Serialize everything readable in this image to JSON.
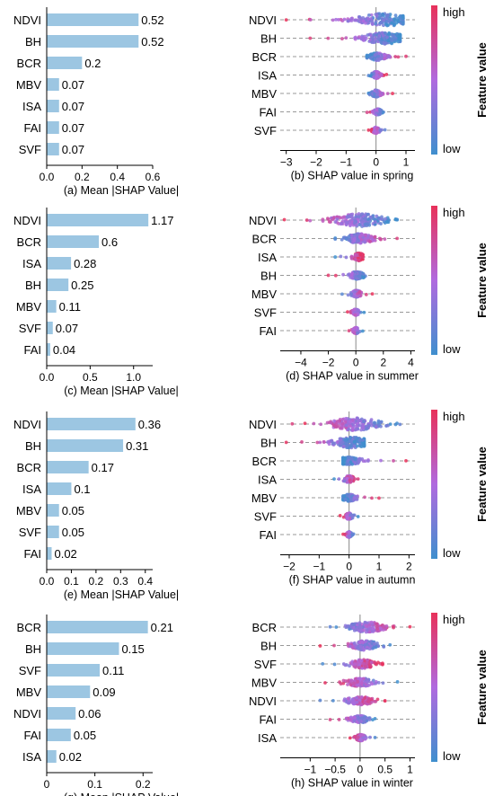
{
  "colors": {
    "bar": "#9cc6e2",
    "high": "#e8315a",
    "low": "#3f8fce",
    "mid": "#b06adf",
    "axis": "#000000",
    "grid": "#999999"
  },
  "colorbar": {
    "high_label": "high",
    "low_label": "low",
    "title": "Feature value"
  },
  "chart_data": [
    {
      "type": "bar",
      "orientation": "horizontal",
      "caption": "(a) Mean |SHAP Value|",
      "categories": [
        "NDVI",
        "BH",
        "BCR",
        "MBV",
        "ISA",
        "FAI",
        "SVF"
      ],
      "values": [
        0.52,
        0.52,
        0.2,
        0.07,
        0.07,
        0.07,
        0.07
      ],
      "value_labels": [
        "0.52",
        "0.52",
        "0.2",
        "0.07",
        "0.07",
        "0.07",
        "0.07"
      ],
      "xlim": [
        0,
        0.6
      ],
      "xticks": [
        0,
        0.2,
        0.4,
        0.6
      ],
      "xtick_labels": [
        "0.0",
        "0.2",
        "0.4",
        "0.6"
      ]
    },
    {
      "type": "scatter",
      "subtype": "shap-beeswarm",
      "caption": "(b) SHAP value in spring",
      "categories": [
        "NDVI",
        "BH",
        "BCR",
        "ISA",
        "MBV",
        "FAI",
        "SVF"
      ],
      "xlim": [
        -3.2,
        1.3
      ],
      "xticks": [
        -3,
        -2,
        -1,
        0,
        1
      ],
      "xtick_labels": [
        "−3",
        "−2",
        "−1",
        "0",
        "1"
      ],
      "features": [
        {
          "min": -3.0,
          "max": 0.9,
          "center": 0.3,
          "spread": 1.3,
          "high_side": "left",
          "thickness": 1.0
        },
        {
          "min": -2.2,
          "max": 0.8,
          "center": 0.3,
          "spread": 0.9,
          "high_side": "left",
          "thickness": 0.9
        },
        {
          "min": -0.3,
          "max": 1.0,
          "center": 0.05,
          "spread": 0.45,
          "high_side": "right",
          "thickness": 0.55
        },
        {
          "min": -0.25,
          "max": 0.35,
          "center": 0.0,
          "spread": 0.15,
          "high_side": "right",
          "thickness": 0.5
        },
        {
          "min": -0.25,
          "max": 0.55,
          "center": 0.0,
          "spread": 0.2,
          "high_side": "right",
          "thickness": 0.5
        },
        {
          "min": -0.3,
          "max": 0.25,
          "center": 0.05,
          "spread": 0.12,
          "high_side": "left",
          "thickness": 0.45
        },
        {
          "min": -0.25,
          "max": 0.3,
          "center": 0.0,
          "spread": 0.12,
          "high_side": "left",
          "thickness": 0.45
        }
      ]
    },
    {
      "type": "bar",
      "orientation": "horizontal",
      "caption": "(c) Mean |SHAP Value|",
      "categories": [
        "NDVI",
        "BCR",
        "ISA",
        "BH",
        "MBV",
        "SVF",
        "FAI"
      ],
      "values": [
        1.17,
        0.6,
        0.28,
        0.25,
        0.11,
        0.07,
        0.04
      ],
      "value_labels": [
        "1.17",
        "0.6",
        "0.28",
        "0.25",
        "0.11",
        "0.07",
        "0.04"
      ],
      "xlim": [
        0,
        1.22
      ],
      "xticks": [
        0,
        0.5,
        1.0
      ],
      "xtick_labels": [
        "0.0",
        "0.5",
        "1.0"
      ]
    },
    {
      "type": "scatter",
      "subtype": "shap-beeswarm",
      "caption": "(d) SHAP value in summer",
      "categories": [
        "NDVI",
        "BCR",
        "ISA",
        "BH",
        "MBV",
        "SVF",
        "FAI"
      ],
      "xlim": [
        -5.5,
        4.3
      ],
      "xticks": [
        -4,
        -2,
        0,
        2,
        4
      ],
      "xtick_labels": [
        "−4",
        "−2",
        "0",
        "2",
        "4"
      ],
      "features": [
        {
          "min": -5.2,
          "max": 3.0,
          "center": 0.3,
          "spread": 2.2,
          "high_side": "left",
          "thickness": 1.0
        },
        {
          "min": -1.5,
          "max": 3.0,
          "center": 0.3,
          "spread": 1.0,
          "high_side": "right",
          "thickness": 0.75
        },
        {
          "min": -1.5,
          "max": 0.5,
          "center": 0.2,
          "spread": 0.35,
          "high_side": "right",
          "thickness": 0.55
        },
        {
          "min": -2.0,
          "max": 0.7,
          "center": 0.1,
          "spread": 0.4,
          "high_side": "left",
          "thickness": 0.55
        },
        {
          "min": -1.0,
          "max": 1.2,
          "center": 0.0,
          "spread": 0.25,
          "high_side": "right",
          "thickness": 0.5
        },
        {
          "min": -0.6,
          "max": 0.6,
          "center": 0.0,
          "spread": 0.2,
          "high_side": "left",
          "thickness": 0.45
        },
        {
          "min": -0.5,
          "max": 0.5,
          "center": 0.0,
          "spread": 0.15,
          "high_side": "left",
          "thickness": 0.45
        }
      ]
    },
    {
      "type": "bar",
      "orientation": "horizontal",
      "caption": "(e) Mean |SHAP Value|",
      "categories": [
        "NDVI",
        "BH",
        "BCR",
        "ISA",
        "MBV",
        "SVF",
        "FAI"
      ],
      "values": [
        0.36,
        0.31,
        0.17,
        0.1,
        0.05,
        0.05,
        0.02
      ],
      "value_labels": [
        "0.36",
        "0.31",
        "0.17",
        "0.1",
        "0.05",
        "0.05",
        "0.02"
      ],
      "xlim": [
        0,
        0.43
      ],
      "xticks": [
        0,
        0.1,
        0.2,
        0.3,
        0.4
      ],
      "xtick_labels": [
        "0.0",
        "0.1",
        "0.2",
        "0.3",
        "0.4"
      ]
    },
    {
      "type": "scatter",
      "subtype": "shap-beeswarm",
      "caption": "(f) SHAP value in autumn",
      "categories": [
        "NDVI",
        "BH",
        "BCR",
        "ISA",
        "MBV",
        "SVF",
        "FAI"
      ],
      "xlim": [
        -2.3,
        2.2
      ],
      "xticks": [
        -2,
        -1,
        0,
        1,
        2
      ],
      "xtick_labels": [
        "−2",
        "−1",
        "0",
        "1",
        "2"
      ],
      "features": [
        {
          "min": -1.9,
          "max": 1.7,
          "center": 0.2,
          "spread": 0.9,
          "high_side": "left",
          "thickness": 1.0
        },
        {
          "min": -2.1,
          "max": 0.5,
          "center": 0.1,
          "spread": 0.7,
          "high_side": "left",
          "thickness": 0.85
        },
        {
          "min": -0.2,
          "max": 1.9,
          "center": 0.0,
          "spread": 0.35,
          "high_side": "right",
          "thickness": 0.55
        },
        {
          "min": -0.5,
          "max": 0.3,
          "center": 0.0,
          "spread": 0.15,
          "high_side": "right",
          "thickness": 0.5
        },
        {
          "min": -0.2,
          "max": 1.0,
          "center": 0.0,
          "spread": 0.2,
          "high_side": "right",
          "thickness": 0.5
        },
        {
          "min": -0.3,
          "max": 0.3,
          "center": 0.0,
          "spread": 0.1,
          "high_side": "left",
          "thickness": 0.45
        },
        {
          "min": -0.2,
          "max": 0.15,
          "center": 0.0,
          "spread": 0.08,
          "high_side": "left",
          "thickness": 0.4
        }
      ]
    },
    {
      "type": "bar",
      "orientation": "horizontal",
      "caption": "(g) Mean |SHAP Value|",
      "categories": [
        "BCR",
        "BH",
        "SVF",
        "MBV",
        "NDVI",
        "FAI",
        "ISA"
      ],
      "values": [
        0.21,
        0.15,
        0.11,
        0.09,
        0.06,
        0.05,
        0.02
      ],
      "value_labels": [
        "0.21",
        "0.15",
        "0.11",
        "0.09",
        "0.06",
        "0.05",
        "0.02"
      ],
      "xlim": [
        0,
        0.22
      ],
      "xticks": [
        0,
        0.1,
        0.2
      ],
      "xtick_labels": [
        "0",
        "0.1",
        "0.2"
      ]
    },
    {
      "type": "scatter",
      "subtype": "shap-beeswarm",
      "caption": "(h) SHAP value in winter",
      "categories": [
        "BCR",
        "BH",
        "SVF",
        "MBV",
        "NDVI",
        "FAI",
        "ISA"
      ],
      "xlim": [
        -1.6,
        1.1
      ],
      "xticks": [
        -1,
        -0.5,
        0,
        0.5,
        1
      ],
      "xtick_labels": [
        "−1",
        "−0.5",
        "0",
        "0.5",
        "1"
      ],
      "features": [
        {
          "min": -0.6,
          "max": 1.0,
          "center": 0.15,
          "spread": 0.4,
          "high_side": "right",
          "thickness": 0.8
        },
        {
          "min": -0.8,
          "max": 0.6,
          "center": 0.1,
          "spread": 0.3,
          "high_side": "left",
          "thickness": 0.7
        },
        {
          "min": -0.75,
          "max": 0.45,
          "center": 0.05,
          "spread": 0.25,
          "high_side": "right",
          "thickness": 0.65
        },
        {
          "min": -0.7,
          "max": 0.75,
          "center": 0.0,
          "spread": 0.25,
          "high_side": "left",
          "thickness": 0.6
        },
        {
          "min": -0.8,
          "max": 0.5,
          "center": 0.0,
          "spread": 0.25,
          "high_side": "right",
          "thickness": 0.6
        },
        {
          "min": -0.6,
          "max": 0.3,
          "center": 0.0,
          "spread": 0.18,
          "high_side": "left",
          "thickness": 0.5
        },
        {
          "min": -0.2,
          "max": 0.3,
          "center": 0.0,
          "spread": 0.1,
          "high_side": "left",
          "thickness": 0.45
        }
      ]
    }
  ]
}
